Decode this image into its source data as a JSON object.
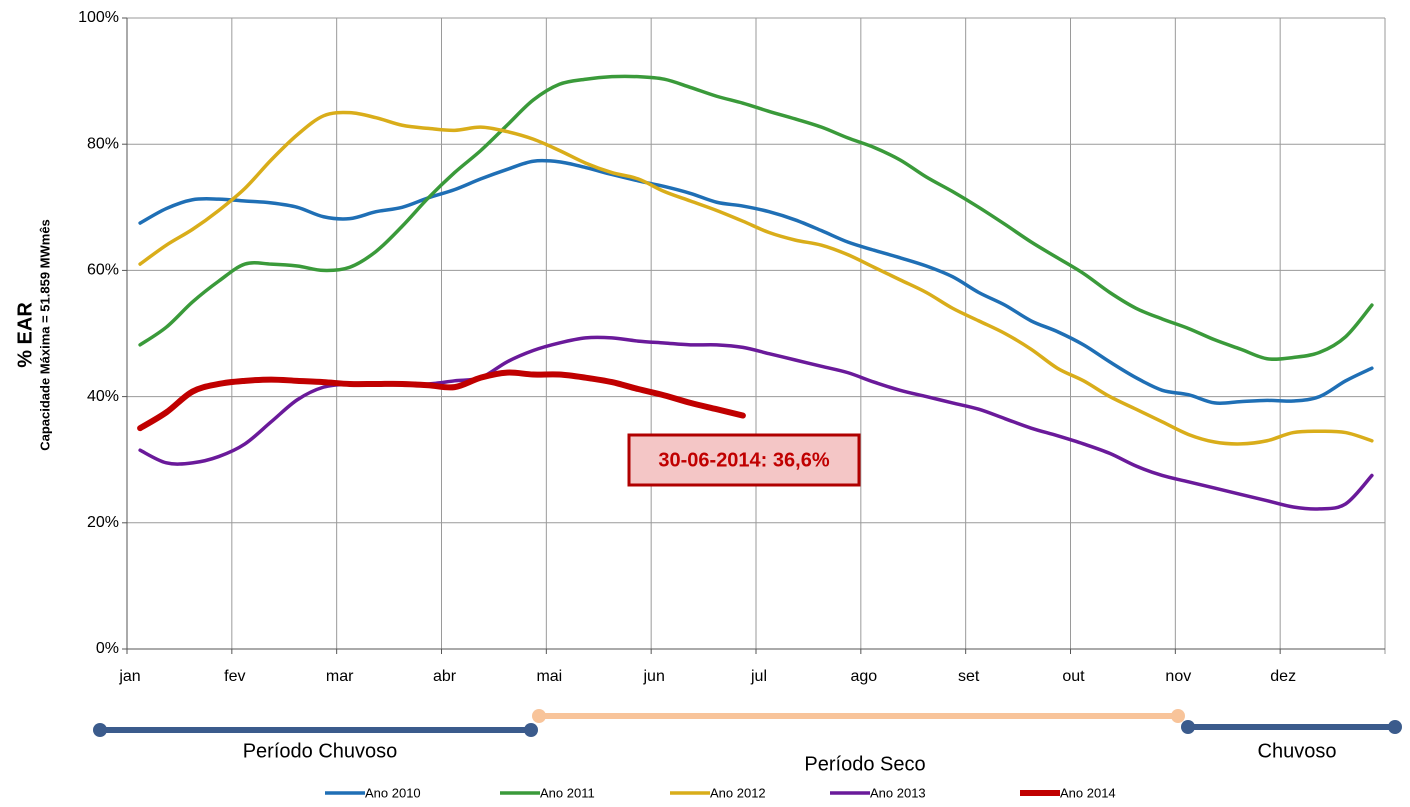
{
  "chart_data": {
    "type": "line",
    "ylabel": "% EAR",
    "ylabel_sub": "Capacidade Máxima = 51.859 MWmês",
    "categories": [
      "jan",
      null,
      null,
      null,
      "fev",
      null,
      null,
      null,
      "mar",
      null,
      null,
      null,
      "abr",
      null,
      null,
      null,
      "mai",
      null,
      null,
      null,
      "jun",
      null,
      null,
      null,
      "jul",
      null,
      null,
      null,
      "ago",
      null,
      null,
      null,
      "set",
      null,
      null,
      null,
      "out",
      null,
      null,
      null,
      "nov",
      null,
      null,
      null,
      "dez",
      null,
      null,
      null
    ],
    "ylim": [
      0,
      100
    ],
    "yticks": [
      {
        "value": 0,
        "label": "0%"
      },
      {
        "value": 20,
        "label": "20%"
      },
      {
        "value": 40,
        "label": "40%"
      },
      {
        "value": 60,
        "label": "60%"
      },
      {
        "value": 80,
        "label": "80%"
      },
      {
        "value": 100,
        "label": "100%"
      }
    ],
    "grid": true,
    "series": [
      {
        "name": "Ano 2010",
        "color": "#1f6fb5",
        "line_width": 3.5,
        "values": [
          67.5,
          69.8,
          71.2,
          71.3,
          71,
          70.7,
          70,
          68.5,
          68.2,
          69.3,
          70,
          71.5,
          72.8,
          74.5,
          76,
          77.3,
          77.2,
          76.3,
          75.2,
          74.2,
          73.3,
          72.2,
          70.8,
          70.2,
          69.3,
          68,
          66.3,
          64.5,
          63.2,
          62,
          60.7,
          59,
          56.5,
          54.5,
          52,
          50.3,
          48.2,
          45.5,
          43,
          41,
          40.3,
          39,
          39.2,
          39.4,
          39.3,
          40,
          42.5,
          44.5
        ]
      },
      {
        "name": "Ano 2011",
        "color": "#3a9a3a",
        "line_width": 3.5,
        "values": [
          48.2,
          51,
          55,
          58.3,
          61,
          61,
          60.7,
          60,
          60.5,
          63,
          67,
          71.5,
          75.5,
          79,
          83,
          87,
          89.5,
          90.3,
          90.7,
          90.7,
          90.3,
          89,
          87.6,
          86.5,
          85.2,
          84,
          82.7,
          81,
          79.5,
          77.5,
          74.8,
          72.5,
          70,
          67.3,
          64.5,
          62,
          59.5,
          56.5,
          54,
          52.3,
          50.8,
          49,
          47.5,
          46,
          46.2,
          47,
          49.5,
          54.5
        ]
      },
      {
        "name": "Ano 2012",
        "color": "#d9ad1a",
        "line_width": 3.5,
        "values": [
          61,
          64,
          66.5,
          69.5,
          73,
          77.5,
          81.5,
          84.5,
          85,
          84.2,
          83,
          82.5,
          82.2,
          82.7,
          82,
          80.8,
          79,
          77,
          75.5,
          74.5,
          72.5,
          71,
          69.5,
          67.8,
          66,
          64.8,
          64,
          62.5,
          60.5,
          58.5,
          56.5,
          54,
          52,
          50,
          47.5,
          44.5,
          42.5,
          40,
          38,
          36,
          34,
          32.8,
          32.5,
          33,
          34.3,
          34.5,
          34.3,
          33
        ]
      },
      {
        "name": "Ano 2013",
        "color": "#6a1a9a",
        "line_width": 3.5,
        "values": [
          31.5,
          29.5,
          29.5,
          30.5,
          32.5,
          36,
          39.5,
          41.5,
          42,
          42,
          42,
          42,
          42.5,
          43,
          45.5,
          47.3,
          48.5,
          49.3,
          49.3,
          48.8,
          48.5,
          48.2,
          48.2,
          47.8,
          46.8,
          45.8,
          44.8,
          43.8,
          42.3,
          41,
          40,
          39,
          38,
          36.5,
          35,
          33.8,
          32.5,
          31,
          29,
          27.5,
          26.5,
          25.5,
          24.5,
          23.5,
          22.5,
          22.2,
          23,
          27.5
        ]
      },
      {
        "name": "Ano 2014",
        "color": "#c00000",
        "line_width": 6,
        "values": [
          35,
          37.5,
          40.8,
          42,
          42.5,
          42.7,
          42.5,
          42.3,
          42,
          42,
          42,
          41.8,
          41.5,
          43,
          43.8,
          43.5,
          43.5,
          43,
          42.3,
          41.2,
          40.2,
          39,
          38,
          37,
          null,
          null,
          null,
          null,
          null,
          null,
          null,
          null,
          null,
          null,
          null,
          null,
          null,
          null,
          null,
          null,
          null,
          null,
          null,
          null,
          null,
          null,
          null,
          null
        ]
      }
    ],
    "annotation": "30-06-2014: 36,6%",
    "periods": [
      {
        "label": "Período Chuvoso",
        "color": "#3b5b8c"
      },
      {
        "label": "Período Seco",
        "color": "#f8c49a"
      },
      {
        "label": "Chuvoso",
        "color": "#3b5b8c"
      }
    ]
  }
}
